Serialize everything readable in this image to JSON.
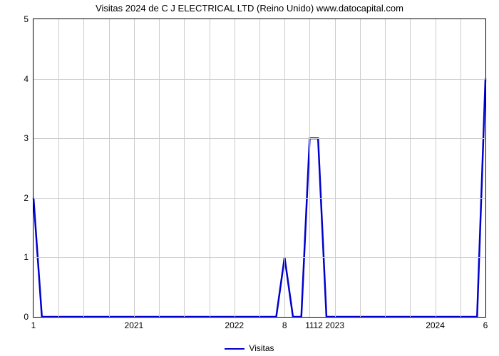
{
  "chart": {
    "type": "line",
    "title": "Visitas 2024 de C J ELECTRICAL LTD (Reino Unido) www.datocapital.com",
    "title_fontsize": 13,
    "title_color": "#000000",
    "background_color": "#ffffff",
    "plot_border_color": "#000000",
    "grid_color": "#cccccc",
    "line_color": "#0000cc",
    "line_width": 2.5,
    "y": {
      "lim": [
        0,
        5
      ],
      "ticks": [
        0,
        1,
        2,
        3,
        4,
        5
      ],
      "tick_labels": [
        "0",
        "1",
        "2",
        "3",
        "4",
        "5"
      ],
      "tick_fontsize": 12
    },
    "x": {
      "range_units": 54,
      "grid_every": 3,
      "ticks": [
        {
          "u": 0,
          "label": "1"
        },
        {
          "u": 12,
          "label": "2021"
        },
        {
          "u": 24,
          "label": "2022"
        },
        {
          "u": 30,
          "label": "8"
        },
        {
          "u": 33,
          "label": "11"
        },
        {
          "u": 34,
          "label": "12"
        },
        {
          "u": 36,
          "label": "2023"
        },
        {
          "u": 48,
          "label": "2024"
        },
        {
          "u": 54,
          "label": "6"
        }
      ],
      "tick_fontsize": 12
    },
    "series": [
      {
        "name": "Visitas",
        "points": [
          {
            "u": 0,
            "v": 2
          },
          {
            "u": 1,
            "v": 0
          },
          {
            "u": 29,
            "v": 0
          },
          {
            "u": 30,
            "v": 1
          },
          {
            "u": 31,
            "v": 0
          },
          {
            "u": 32,
            "v": 0
          },
          {
            "u": 33,
            "v": 3
          },
          {
            "u": 34,
            "v": 3
          },
          {
            "u": 35,
            "v": 0
          },
          {
            "u": 53,
            "v": 0
          },
          {
            "u": 54,
            "v": 4
          }
        ]
      }
    ],
    "legend": {
      "label": "Visitas",
      "fontsize": 12,
      "line_color": "#0000cc"
    }
  }
}
